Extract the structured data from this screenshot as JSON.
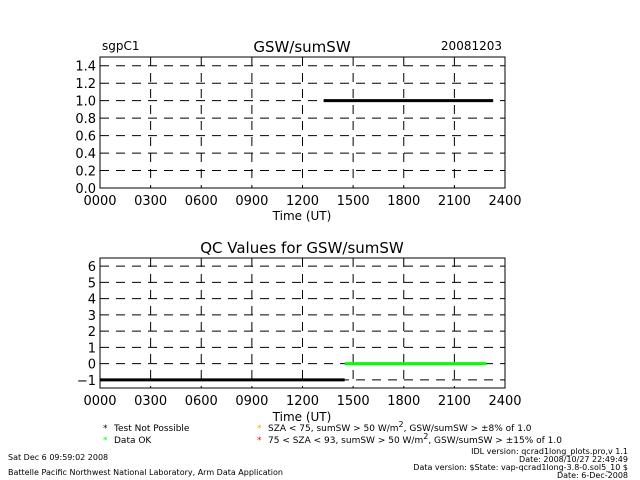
{
  "header": {
    "site": "sgpC1",
    "date": "20081203"
  },
  "chart_data": [
    {
      "type": "line",
      "title": "GSW/sumSW",
      "xlabel": "Time (UT)",
      "ylabel": "",
      "xlim": [
        0,
        2400
      ],
      "ylim": [
        0.0,
        1.5
      ],
      "x_tick_labels": [
        "0000",
        "0300",
        "0600",
        "0900",
        "1200",
        "1500",
        "1800",
        "2100",
        "2400"
      ],
      "y_tick_labels": [
        "0.0",
        "0.2",
        "0.4",
        "0.6",
        "0.8",
        "1.0",
        "1.2",
        "1.4"
      ],
      "y_ticks": [
        0.0,
        0.2,
        0.4,
        0.6,
        0.8,
        1.0,
        1.2,
        1.4
      ],
      "grid": true,
      "series": [
        {
          "color": "#000000",
          "x": [
            1325,
            2330
          ],
          "y": [
            1.0,
            1.0
          ]
        }
      ]
    },
    {
      "type": "line",
      "title": "QC Values for GSW/sumSW",
      "xlabel": "Time (UT)",
      "ylabel": "",
      "xlim": [
        0,
        2400
      ],
      "ylim": [
        -1.5,
        6.5
      ],
      "x_tick_labels": [
        "0000",
        "0300",
        "0600",
        "0900",
        "1200",
        "1500",
        "1800",
        "2100",
        "2400"
      ],
      "y_tick_labels": [
        "−1",
        "0",
        "1",
        "2",
        "3",
        "4",
        "5",
        "6"
      ],
      "y_ticks": [
        -1,
        0,
        1,
        2,
        3,
        4,
        5,
        6
      ],
      "grid": true,
      "series": [
        {
          "color": "#000000",
          "x": [
            0,
            1450
          ],
          "y": [
            -1,
            -1
          ]
        },
        {
          "color": "#00ff00",
          "x": [
            1450,
            2290
          ],
          "y": [
            0,
            0
          ]
        }
      ]
    }
  ],
  "legend": {
    "items": [
      {
        "symbol": "*",
        "color": "#000000",
        "label": "Test Not Possible"
      },
      {
        "symbol": "*",
        "color": "#00ff00",
        "label": "Data OK"
      },
      {
        "symbol": "*",
        "color": "#ffa500",
        "label_parts": [
          "SZA < 75, sumSW > 50 W/m",
          "2",
          ", GSW/sumSW > ±8% of 1.0"
        ]
      },
      {
        "symbol": "*",
        "color": "#ff0000",
        "label_parts": [
          "75 < SZA < 93, sumSW > 50 W/m",
          "2",
          ", GSW/sumSW > ±15% of 1.0"
        ]
      }
    ]
  },
  "footer": {
    "timestamp": "Sat Dec  6 09:59:02 2008",
    "lab": "Battelle Pacific Northwest National Laboratory, Arm Data Application",
    "idl_version": "IDL version: qcrad1long_plots.pro,v 1.1",
    "run_date": "Date: 2008/10/27 22:49:49",
    "data_version": "Data version: $State: vap-qcrad1long-3.8-0.sol5_10 $",
    "data_date": "Date: 6-Dec-2008"
  }
}
